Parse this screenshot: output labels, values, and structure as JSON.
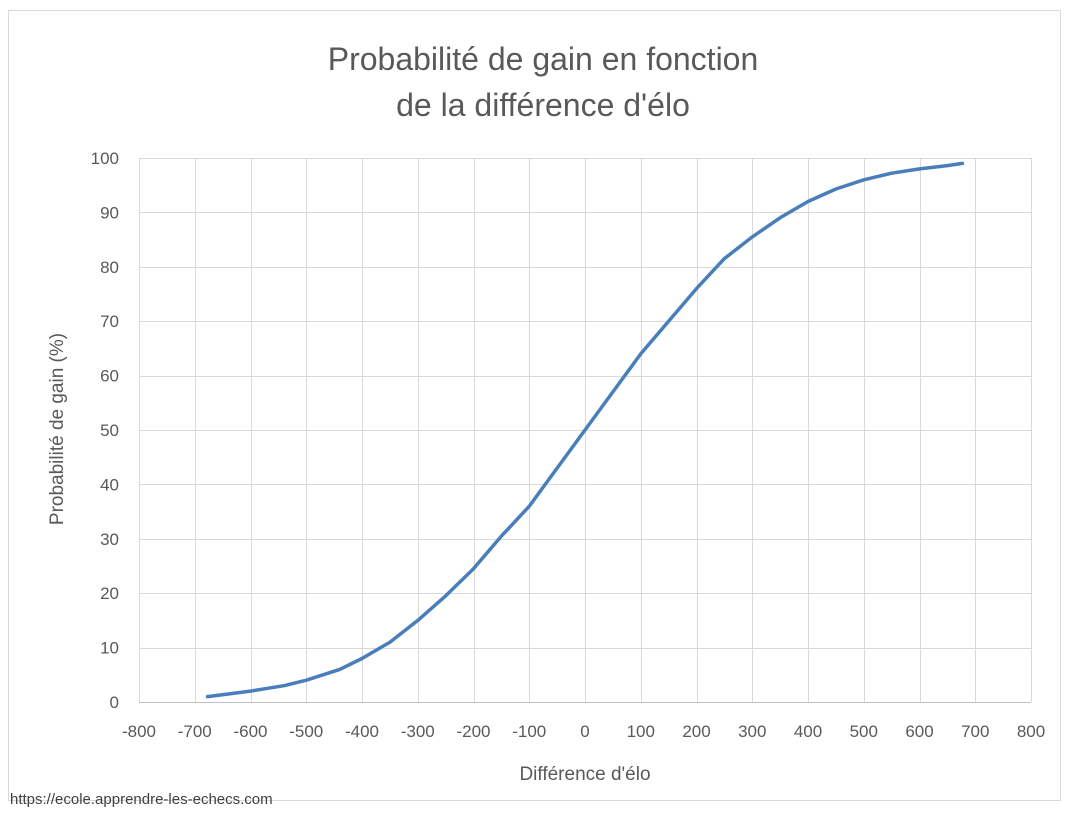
{
  "chart_data": {
    "type": "line",
    "title_line1": "Probabilité de gain en fonction",
    "title_line2": "de la différence d'élo",
    "xlabel": "Différence d'élo",
    "ylabel": "Probabilité de gain (%)",
    "xlim": [
      -800,
      800
    ],
    "ylim": [
      0,
      100
    ],
    "x_ticks": [
      -800,
      -700,
      -600,
      -500,
      -400,
      -300,
      -200,
      -100,
      0,
      100,
      200,
      300,
      400,
      500,
      600,
      700,
      800
    ],
    "y_ticks": [
      0,
      10,
      20,
      30,
      40,
      50,
      60,
      70,
      80,
      90,
      100
    ],
    "x_tick_labels": [
      "-800",
      "-700",
      "-600",
      "-500",
      "-400",
      "-300",
      "-200",
      "-100",
      "0",
      "100",
      "200",
      "300",
      "400",
      "500",
      "600",
      "700",
      "800"
    ],
    "y_tick_labels": [
      "0",
      "10",
      "20",
      "30",
      "40",
      "50",
      "60",
      "70",
      "80",
      "90",
      "100"
    ],
    "grid": true,
    "legend": "none",
    "series": [
      {
        "color": "#4a7ebb",
        "x": [
          -677,
          -600,
          -540,
          -500,
          -470,
          -440,
          -400,
          -350,
          -300,
          -250,
          -200,
          -150,
          -100,
          -50,
          0,
          50,
          100,
          150,
          200,
          250,
          300,
          350,
          400,
          450,
          500,
          550,
          600,
          650,
          677
        ],
        "values": [
          1,
          2,
          3,
          4,
          5,
          6,
          8,
          11,
          15,
          19.5,
          24.5,
          30.5,
          36,
          43,
          50,
          57,
          64,
          70,
          76,
          81.5,
          85.5,
          89,
          92,
          94.3,
          96,
          97.2,
          98,
          98.6,
          99
        ]
      }
    ]
  },
  "source_text": "https://ecole.apprendre-les-echecs.com",
  "colors": {
    "frame": "#d9d9d9",
    "text": "#595959"
  }
}
